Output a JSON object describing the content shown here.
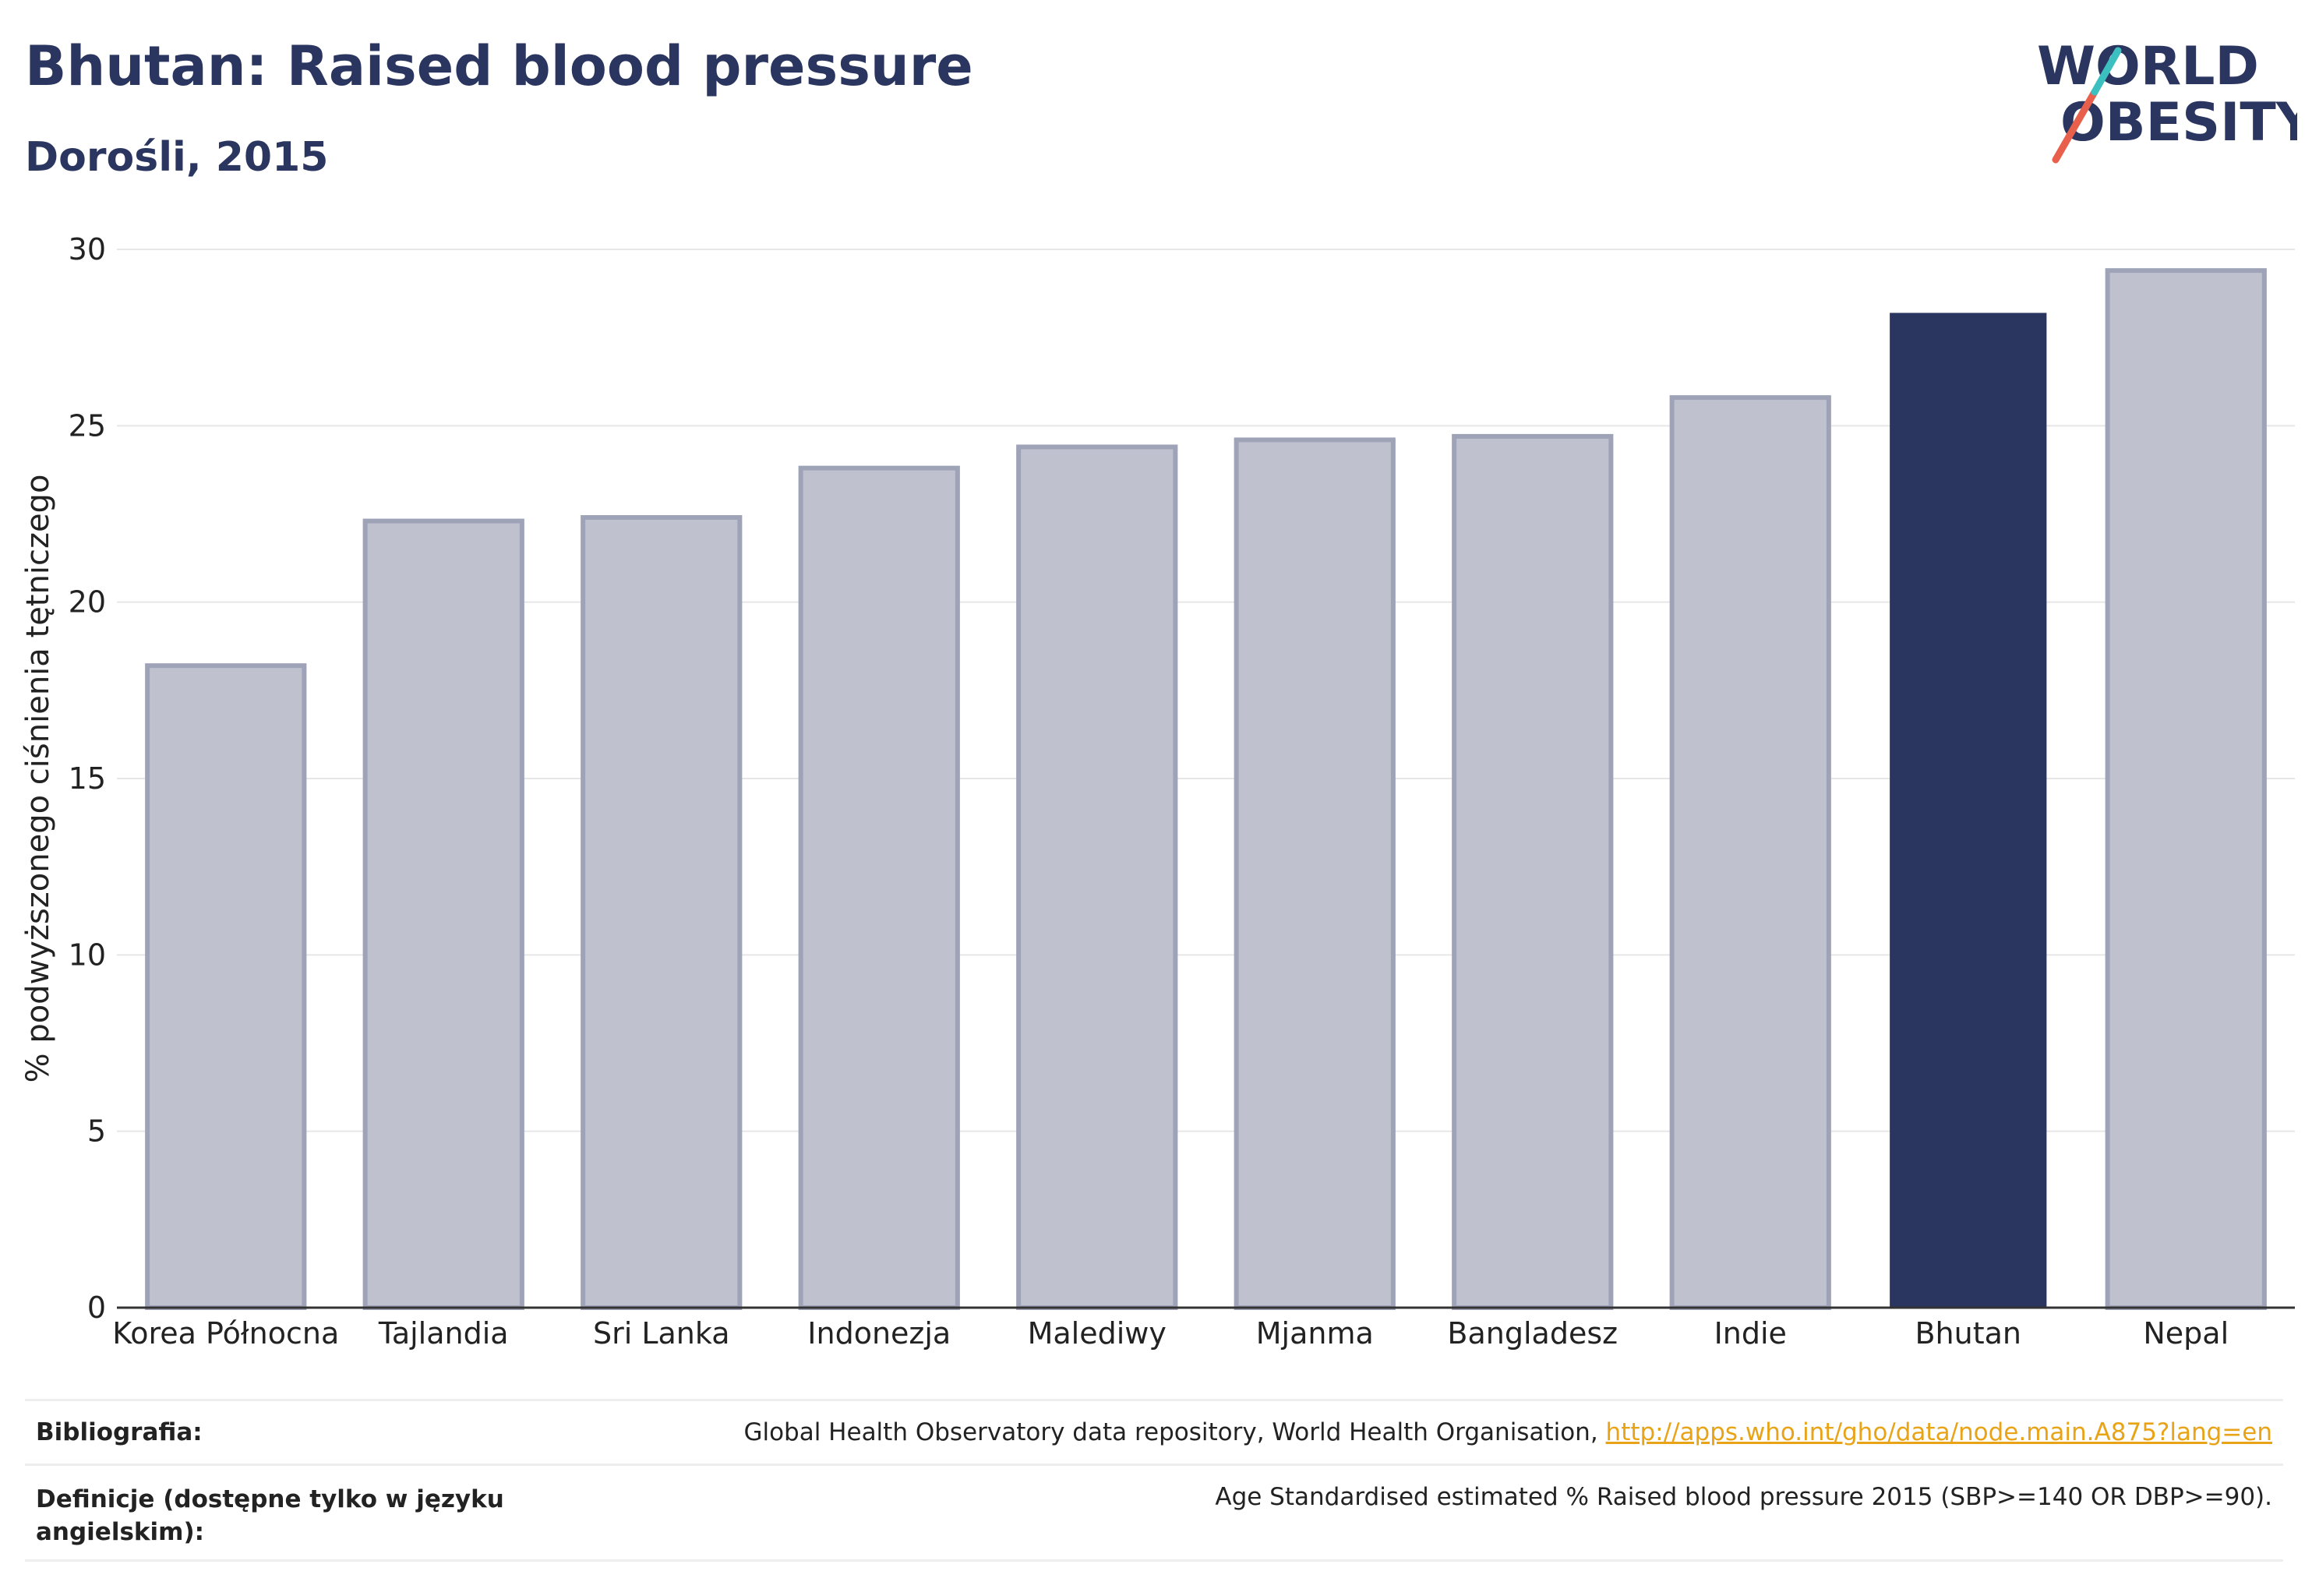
{
  "header": {
    "title": "Bhutan: Raised blood pressure",
    "subtitle": "Dorośli, 2015"
  },
  "logo": {
    "line1": "WORLD",
    "line2": "OBESITY",
    "colors": {
      "text": "#2a3560",
      "slash_red": "#e8604c",
      "slash_teal": "#3bbfbf"
    }
  },
  "chart_data": {
    "type": "bar",
    "categories": [
      "Korea Północna",
      "Tajlandia",
      "Sri Lanka",
      "Indonezja",
      "Malediwy",
      "Mjanma",
      "Bangladesz",
      "Indie",
      "Bhutan",
      "Nepal"
    ],
    "values": [
      18.2,
      22.3,
      22.4,
      23.8,
      24.4,
      24.6,
      24.7,
      25.8,
      28.2,
      29.4
    ],
    "highlight": "Bhutan",
    "ylabel": "% podwyższonego ciśnienia tętniczego",
    "ylim": [
      0,
      30
    ],
    "yticks": [
      0,
      5,
      10,
      15,
      20,
      25,
      30
    ],
    "grid": true,
    "colors": {
      "bar": "#bfc2ce",
      "bar_edge": "#9ea3b8",
      "highlight": "#2a3560",
      "grid": "#e6e6e6"
    }
  },
  "footer": {
    "source_label": "Bibliografia:",
    "source_text": "Global Health Observatory data repository, World Health Organisation, ",
    "source_link": "http://apps.who.int/gho/data/node.main.A875?lang=en",
    "definition_label": "Definicje (dostępne tylko w języku angielskim):",
    "definition_text": "Age Standardised estimated % Raised blood pressure 2015 (SBP>=140 OR DBP>=90)."
  }
}
